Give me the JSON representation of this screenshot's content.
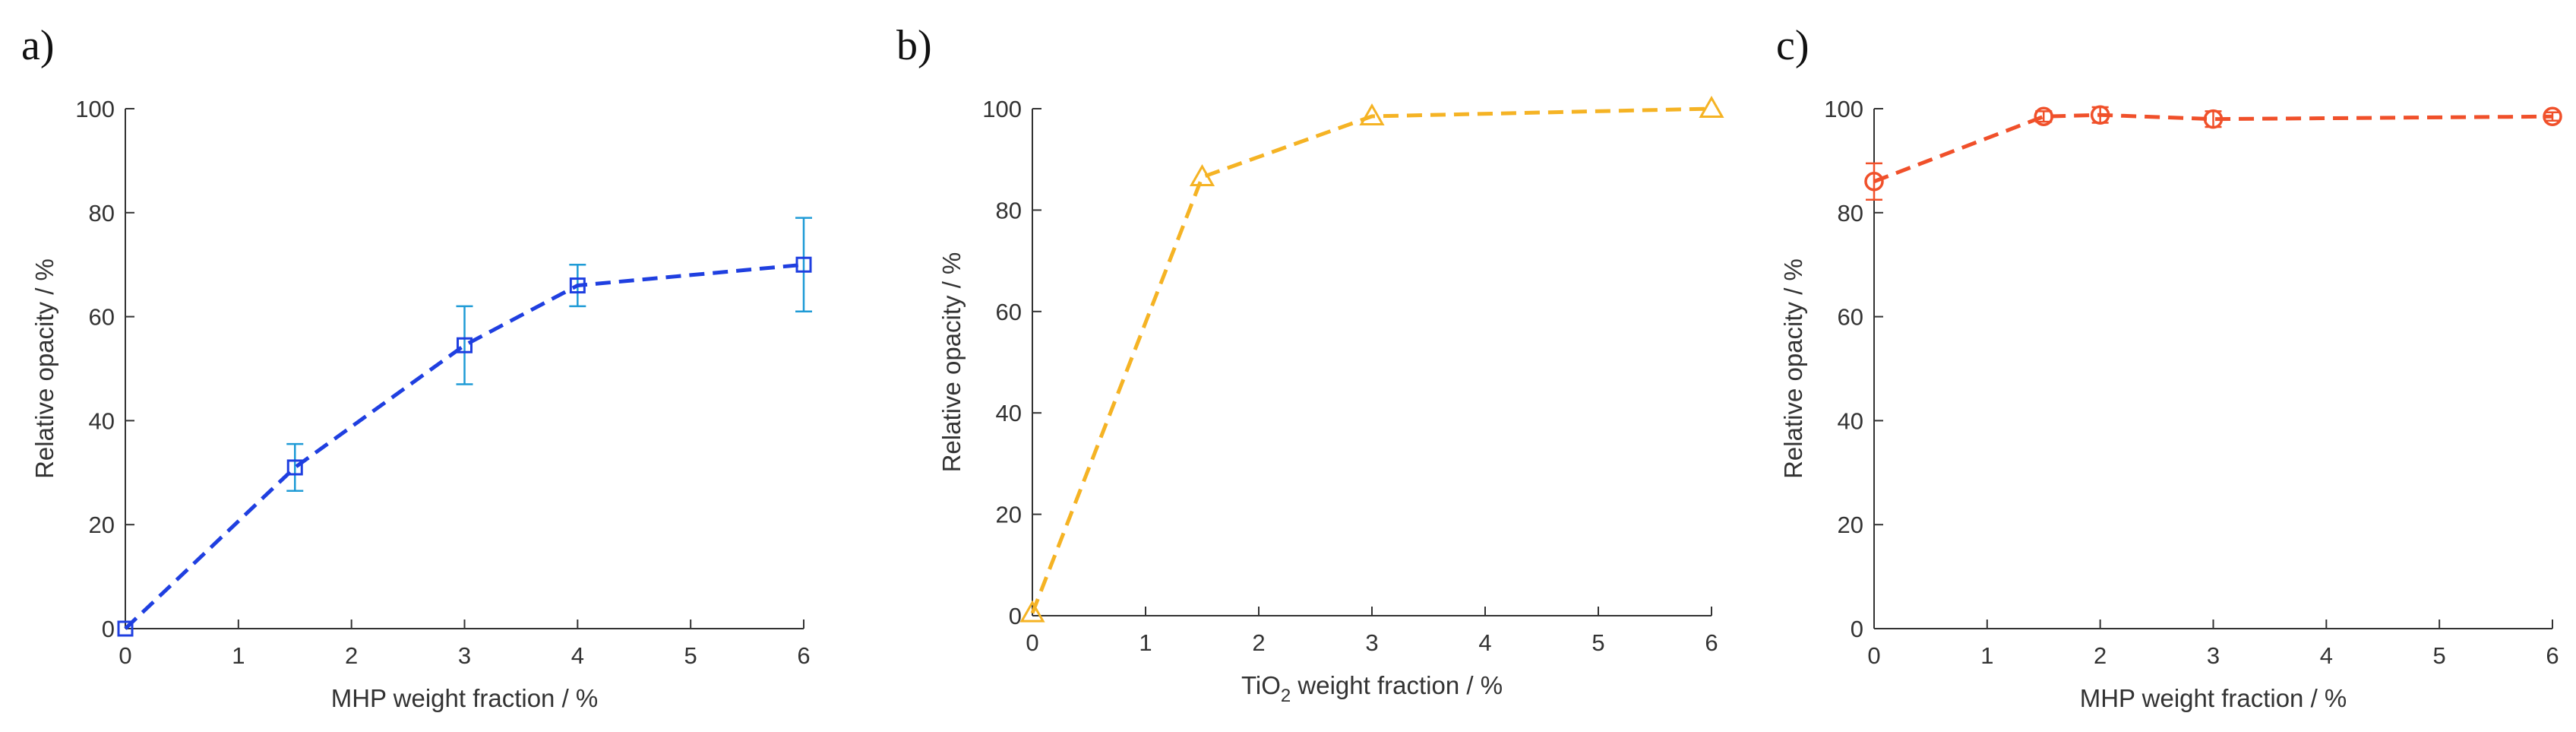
{
  "chart_data": [
    {
      "type": "line",
      "panel_label": "a)",
      "xlabel": "MHP weight fraction / %",
      "xlabel_sub": "",
      "xlabel_rest": "",
      "ylabel": "Relative opacity / %",
      "xlim": [
        0,
        6
      ],
      "ylim": [
        0,
        100
      ],
      "xticks": [
        "0",
        "1",
        "2",
        "3",
        "4",
        "5",
        "6"
      ],
      "yticks": [
        "0",
        "20",
        "40",
        "60",
        "80",
        "100"
      ],
      "color": "#1f3fe0",
      "error_color": "#1f9bd6",
      "marker": "square",
      "x": [
        0,
        1.5,
        3,
        4,
        6
      ],
      "y": [
        0,
        31,
        54.5,
        66,
        70
      ],
      "err": [
        0,
        4.5,
        7.5,
        4,
        9
      ]
    },
    {
      "type": "line",
      "panel_label": "b)",
      "xlabel": "TiO",
      "xlabel_sub": "2",
      "xlabel_rest": " weight fraction / %",
      "ylabel": "Relative opacity / %",
      "xlim": [
        0,
        6
      ],
      "ylim": [
        0,
        100
      ],
      "xticks": [
        "0",
        "1",
        "2",
        "3",
        "4",
        "5",
        "6"
      ],
      "yticks": [
        "0",
        "20",
        "40",
        "60",
        "80",
        "100"
      ],
      "color": "#f5b324",
      "error_color": "#f5b324",
      "marker": "triangle",
      "x": [
        0,
        1.5,
        3,
        6
      ],
      "y": [
        0.5,
        86.5,
        98.5,
        100
      ],
      "err": [
        0,
        0,
        0,
        0
      ]
    },
    {
      "type": "line",
      "panel_label": "c)",
      "xlabel": "MHP weight fraction / %",
      "xlabel_sub": "",
      "xlabel_rest": "",
      "ylabel": "Relative opacity / %",
      "xlim": [
        0,
        6
      ],
      "ylim": [
        0,
        100
      ],
      "xticks": [
        "0",
        "1",
        "2",
        "3",
        "4",
        "5",
        "6"
      ],
      "yticks": [
        "0",
        "20",
        "40",
        "60",
        "80",
        "100"
      ],
      "color": "#f0502a",
      "error_color": "#f0502a",
      "marker": "circle",
      "x": [
        0,
        1.5,
        2,
        3,
        6
      ],
      "y": [
        86,
        98.5,
        98.8,
        98,
        98.5
      ],
      "err": [
        3.5,
        1,
        1.5,
        1.5,
        0.8
      ]
    }
  ]
}
